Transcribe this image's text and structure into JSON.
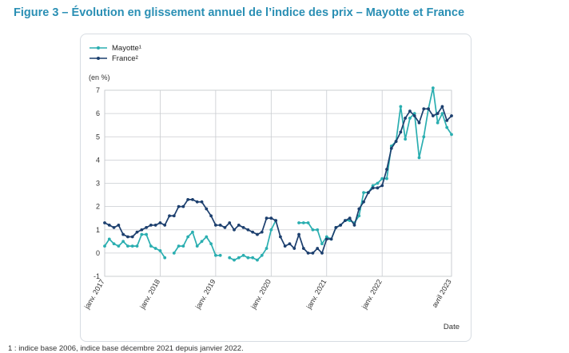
{
  "title": "Figure 3 – Évolution en glissement annuel de l’indice des prix – Mayotte et France",
  "footnote": "1 : indice base 2006, indice base décembre 2021 depuis janvier 2022.",
  "colors": {
    "title": "#2a8fb4",
    "mayotte": "#2aaeb0",
    "france": "#1c3f6e",
    "grid": "#c9ccd0"
  },
  "chart_data": {
    "type": "line",
    "ylabel": "(en %)",
    "xlabel": "Date",
    "ylim": [
      -1,
      7
    ],
    "yticks": [
      "-1",
      "0",
      "1",
      "2",
      "3",
      "4",
      "5",
      "6",
      "7"
    ],
    "grid": true,
    "legend_position": "top-left",
    "x_tick_labels": [
      "janv. 2017",
      "janv. 2018",
      "janv. 2019",
      "janv. 2020",
      "janv. 2021",
      "janv. 2022",
      "avril 2023"
    ],
    "x_tick_months": [
      0,
      12,
      24,
      36,
      48,
      60,
      75
    ],
    "series": [
      {
        "name": "Mayotte¹",
        "values": [
          0.3,
          0.6,
          0.4,
          0.3,
          0.5,
          0.3,
          0.3,
          0.3,
          0.8,
          0.8,
          0.3,
          0.2,
          0.1,
          -0.2,
          null,
          0.0,
          0.3,
          0.3,
          0.7,
          0.9,
          0.3,
          0.5,
          0.7,
          0.4,
          -0.1,
          -0.1,
          null,
          -0.2,
          -0.3,
          -0.2,
          -0.1,
          -0.2,
          -0.2,
          -0.3,
          -0.1,
          0.2,
          1.0,
          1.4,
          null,
          null,
          null,
          null,
          1.3,
          1.3,
          1.3,
          1.0,
          1.0,
          0.4,
          0.7,
          0.6,
          1.1,
          1.2,
          1.4,
          1.4,
          1.3,
          1.6,
          2.6,
          2.6,
          2.9,
          3.0,
          3.2,
          3.2,
          4.6,
          4.8,
          6.3,
          4.9,
          5.8,
          6.0,
          4.1,
          5.0,
          6.2,
          7.1,
          5.6,
          6.0,
          5.4,
          5.1
        ]
      },
      {
        "name": "France²",
        "values": [
          1.3,
          1.2,
          1.1,
          1.2,
          0.8,
          0.7,
          0.7,
          0.9,
          1.0,
          1.1,
          1.2,
          1.2,
          1.3,
          1.2,
          1.6,
          1.6,
          2.0,
          2.0,
          2.3,
          2.3,
          2.2,
          2.2,
          1.9,
          1.6,
          1.2,
          1.2,
          1.1,
          1.3,
          1.0,
          1.2,
          1.1,
          1.0,
          0.9,
          0.8,
          0.9,
          1.5,
          1.5,
          1.4,
          0.7,
          0.3,
          0.4,
          0.2,
          0.8,
          0.2,
          0.0,
          0.0,
          0.2,
          0.0,
          0.6,
          0.6,
          1.1,
          1.2,
          1.4,
          1.5,
          1.2,
          1.9,
          2.2,
          2.6,
          2.8,
          2.8,
          2.9,
          3.6,
          4.5,
          4.8,
          5.2,
          5.8,
          6.1,
          5.9,
          5.6,
          6.2,
          6.2,
          5.9,
          6.0,
          6.3,
          5.7,
          5.9
        ]
      }
    ]
  }
}
